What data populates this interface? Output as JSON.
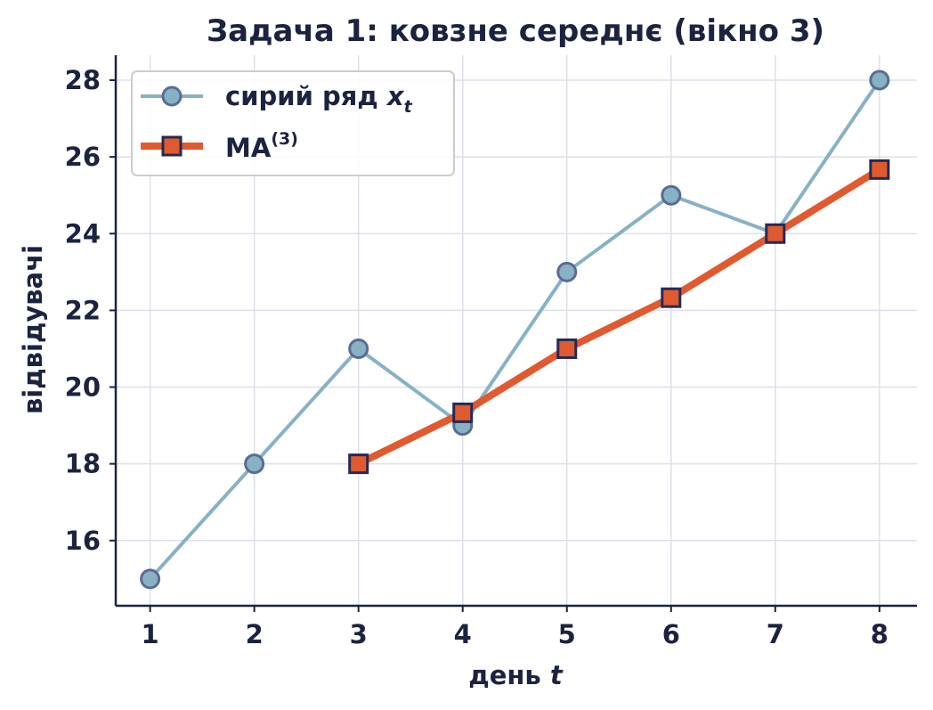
{
  "chart_data": {
    "type": "line",
    "title": "Задача 1: ковзне середнє (вікно 3)",
    "xlabel_text": "день ",
    "xlabel_var": "t",
    "ylabel": "відвідувачі",
    "x": [
      1,
      2,
      3,
      4,
      5,
      6,
      7,
      8
    ],
    "xlim": [
      0.67,
      8.36
    ],
    "ylim": [
      14.3,
      28.65
    ],
    "xticks": [
      "1",
      "2",
      "3",
      "4",
      "5",
      "6",
      "7",
      "8"
    ],
    "yticks": [
      "16",
      "18",
      "20",
      "22",
      "24",
      "26",
      "28"
    ],
    "grid": true,
    "legend_position": "top-left",
    "series": [
      {
        "name_text": "сирий ряд ",
        "name_var": "x",
        "name_sub": "t",
        "color": "#86b2c4",
        "marker": "circle",
        "marker_face": "#86b2c4",
        "marker_edge": "#5c6b93",
        "x": [
          1,
          2,
          3,
          4,
          5,
          6,
          7,
          8
        ],
        "values": [
          15,
          18,
          21,
          19,
          23,
          25,
          24,
          28
        ]
      },
      {
        "name_text": "MA",
        "name_sup": "(3)",
        "color": "#e15a2f",
        "marker": "square",
        "marker_face": "#e15a2f",
        "marker_edge": "#232a55",
        "x": [
          3,
          4,
          5,
          6,
          7,
          8
        ],
        "values": [
          18.0,
          19.33,
          21.0,
          22.33,
          24.0,
          25.67
        ]
      }
    ]
  }
}
